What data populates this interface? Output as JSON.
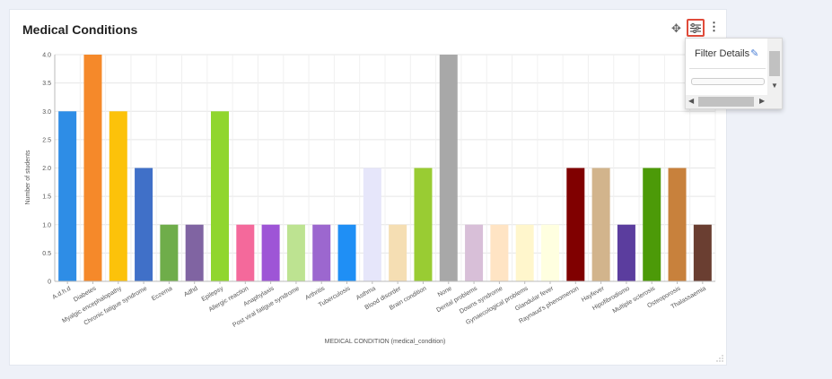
{
  "widget": {
    "title": "Medical Conditions",
    "filter_menu_item": "Filter Details"
  },
  "icons": {
    "move": "move-icon",
    "filter": "sliders-icon",
    "menu": "kebab-menu-icon",
    "edit": "pencil-icon",
    "resize": "resize-handle-icon"
  },
  "colors": {
    "highlight_border": "#e04b3a",
    "background": "#eef1f8"
  },
  "chart_data": {
    "type": "bar",
    "xlabel": "MEDICAL CONDITION (medical_condition)",
    "ylabel": "Number of students",
    "ylim": [
      0,
      4
    ],
    "yticks": [
      "0",
      "0.5",
      "1.0",
      "1.5",
      "2.0",
      "2.5",
      "3.0",
      "3.5",
      "4.0"
    ],
    "grid": true,
    "categories": [
      "A.d.h.d",
      "Diabetes",
      "Myalgic encephalopathy",
      "Chronic fatigue syndrome",
      "Eczema",
      "Adhd",
      "Epilepsy",
      "Allergic reaction",
      "Anaphylaxis",
      "Post viral fatigue syndrome",
      "Arthritis",
      "Tuberculosis",
      "Asthma",
      "Blood disorder",
      "Brain condition",
      "None",
      "Dental problems",
      "Downs syndrome",
      "Gynaecological problems",
      "Glandular fever",
      "Raynaud's phenomenon",
      "Hayfever",
      "Hipofibrodismo",
      "Multiple sclerosis",
      "Osteoporosis",
      "Thalassaemia"
    ],
    "values": [
      3,
      4,
      3,
      2,
      1,
      1,
      3,
      1,
      1,
      1,
      1,
      1,
      2,
      1,
      2,
      4,
      1,
      1,
      1,
      1,
      2,
      2,
      1,
      2,
      2,
      1
    ],
    "colors": [
      "#2e8de6",
      "#f5892a",
      "#fcc20a",
      "#4070c8",
      "#6fad4a",
      "#8064a2",
      "#90d62e",
      "#f4699b",
      "#9e55d6",
      "#bde391",
      "#9c67cf",
      "#1f8ff5",
      "#e6e6fa",
      "#f5deb3",
      "#99cc33",
      "#a8a8a8",
      "#d8bfd8",
      "#ffe4c4",
      "#fff6cc",
      "#ffffe0",
      "#800000",
      "#d2b48c",
      "#5b3d9e",
      "#4c9a08",
      "#c8813c",
      "#6a3e31"
    ]
  }
}
